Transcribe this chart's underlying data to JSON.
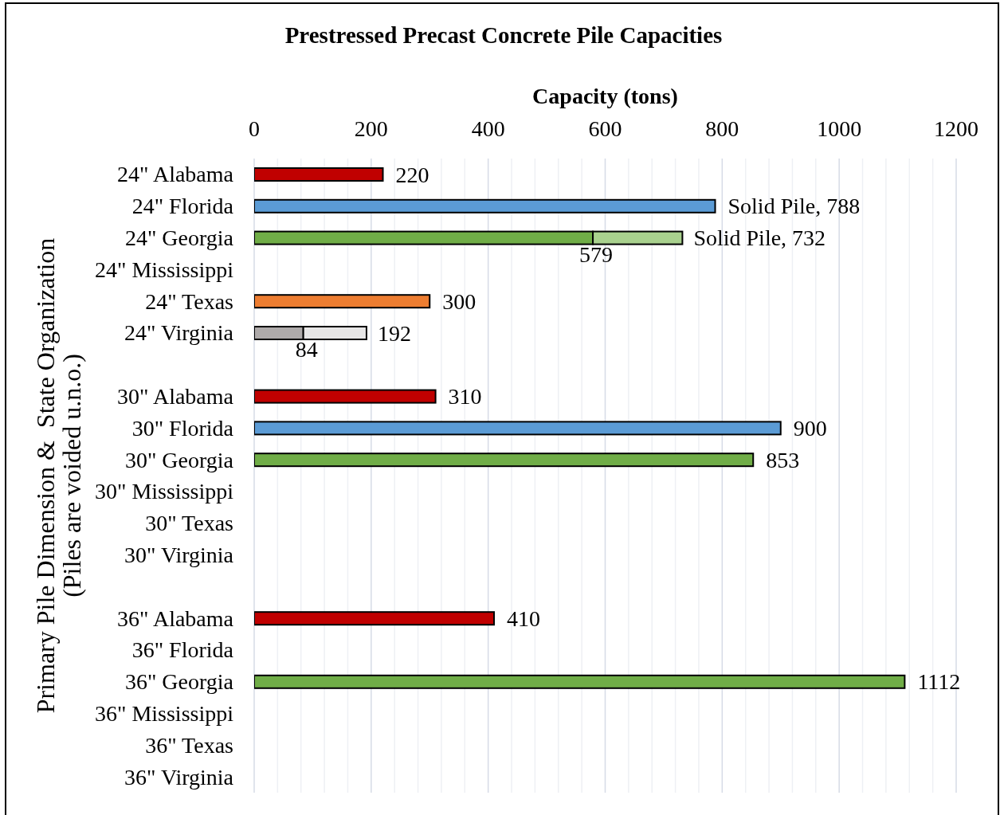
{
  "chart_data": {
    "type": "bar",
    "orientation": "horizontal",
    "stacked": true,
    "title": "Prestressed Precast Concrete Pile Capacities",
    "xlabel": "Capacity (tons)",
    "ylabel": "Primary Pile Dimension &  State Organization\n(Piles are voided u.n.o.)",
    "categories": [
      "24\" Alabama",
      "24\" Florida",
      "24\" Georgia",
      "24\" Mississippi",
      "24\" Texas",
      "24\" Virginia",
      null,
      "30\" Alabama",
      "30\" Florida",
      "30\" Georgia",
      "30\" Mississippi",
      "30\" Texas",
      "30\" Virginia",
      null,
      "36\" Alabama",
      "36\" Florida",
      "36\" Georgia",
      "36\" Mississippi",
      "36\" Texas",
      "36\" Virginia"
    ],
    "series": [
      {
        "colors": [
          "#c00000",
          "#5b9bd5",
          "#70ad47",
          null,
          "#ed7d31",
          "#aeaaaa",
          null,
          "#c00000",
          "#5b9bd5",
          "#70ad47",
          null,
          null,
          null,
          null,
          "#c00000",
          null,
          "#70ad47",
          null,
          null,
          null
        ],
        "values": [
          220,
          788,
          579,
          null,
          300,
          84,
          null,
          310,
          900,
          853,
          null,
          null,
          null,
          null,
          410,
          null,
          1112,
          null,
          null,
          null
        ],
        "value_labels": [
          "220",
          "Solid Pile, 788",
          "579",
          null,
          "300",
          "84",
          null,
          "310",
          "900",
          "853",
          null,
          null,
          null,
          null,
          "410",
          null,
          "1112",
          null,
          null,
          null
        ]
      },
      {
        "colors": [
          null,
          null,
          "#a9d18e",
          null,
          null,
          "#e7e6e6",
          null,
          null,
          null,
          null,
          null,
          null,
          null,
          null,
          null,
          null,
          null,
          null,
          null,
          null
        ],
        "values": [
          null,
          null,
          153,
          null,
          null,
          108,
          null,
          null,
          null,
          null,
          null,
          null,
          null,
          null,
          null,
          null,
          null,
          null,
          null,
          null
        ]
      }
    ],
    "totals": [
      null,
      null,
      "Solid Pile, 732",
      null,
      null,
      "192",
      null,
      null,
      null,
      null,
      null,
      null,
      null,
      null,
      null,
      null,
      null,
      null,
      null,
      null
    ],
    "xlim": [
      0,
      1200
    ],
    "xticks": [
      0,
      {
        "value": 40,
        "label": null
      },
      {
        "value": 80,
        "label": null
      },
      {
        "value": 120,
        "label": null
      },
      {
        "value": 160,
        "label": null
      },
      200,
      {
        "value": 240,
        "label": null
      },
      {
        "value": 280,
        "label": null
      },
      {
        "value": 320,
        "label": null
      },
      {
        "value": 360,
        "label": null
      },
      400,
      {
        "value": 440,
        "label": null
      },
      {
        "value": 480,
        "label": null
      },
      {
        "value": 520,
        "label": null
      },
      {
        "value": 560,
        "label": null
      },
      600,
      {
        "value": 640,
        "label": null
      },
      {
        "value": 680,
        "label": null
      },
      {
        "value": 720,
        "label": null
      },
      {
        "value": 760,
        "label": null
      },
      800,
      {
        "value": 840,
        "label": null
      },
      {
        "value": 880,
        "label": null
      },
      {
        "value": 920,
        "label": null
      },
      {
        "value": 960,
        "label": null
      },
      1000,
      {
        "value": 1040,
        "label": null
      },
      {
        "value": 1080,
        "label": null
      },
      {
        "value": 1120,
        "label": null
      },
      {
        "value": 1160,
        "label": null
      },
      1200
    ],
    "grid": "x"
  }
}
